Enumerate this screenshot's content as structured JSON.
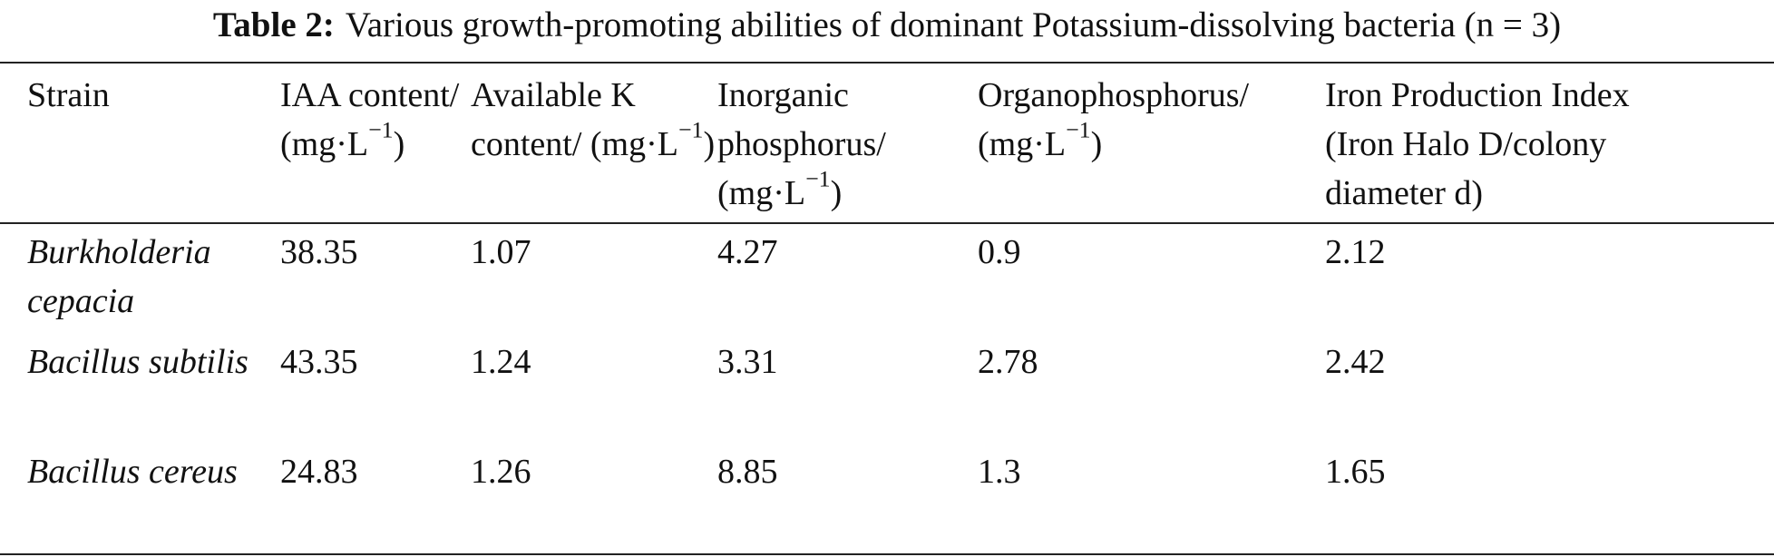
{
  "caption": {
    "label": "Table 2:",
    "text": "Various growth-promoting abilities of dominant Potassium-dissolving bacteria (n = 3)"
  },
  "table": {
    "header": [
      [
        {
          "text": "Strain"
        }
      ],
      [
        {
          "text": "IAA content/"
        },
        {
          "text": "(mg·L"
        },
        {
          "sup": "−1"
        },
        {
          "text": ")"
        }
      ],
      [
        {
          "text": "Available K content/"
        },
        {
          "text": "(mg·L"
        },
        {
          "sup": "−1"
        },
        {
          "text": ")"
        }
      ],
      [
        {
          "text": "Inorganic phosphorus/"
        },
        {
          "text": "(mg·L"
        },
        {
          "sup": "−1"
        },
        {
          "text": ")"
        }
      ],
      [
        {
          "text": "Organophosphorus/"
        },
        {
          "text": "(mg·L"
        },
        {
          "sup": "−1"
        },
        {
          "text": ")"
        }
      ],
      [
        {
          "text": "Iron Production Index (Iron Halo D/colony diameter d)"
        }
      ]
    ],
    "rows": [
      {
        "strain": "Burkholderia cepacia",
        "values": [
          38.35,
          1.07,
          4.27,
          0.9,
          2.12
        ]
      },
      {
        "strain": "Bacillus subtilis",
        "values": [
          43.35,
          1.24,
          3.31,
          2.78,
          2.42
        ]
      },
      {
        "strain": "Bacillus cereus",
        "values": [
          24.83,
          1.26,
          8.85,
          1.3,
          1.65
        ]
      }
    ]
  }
}
